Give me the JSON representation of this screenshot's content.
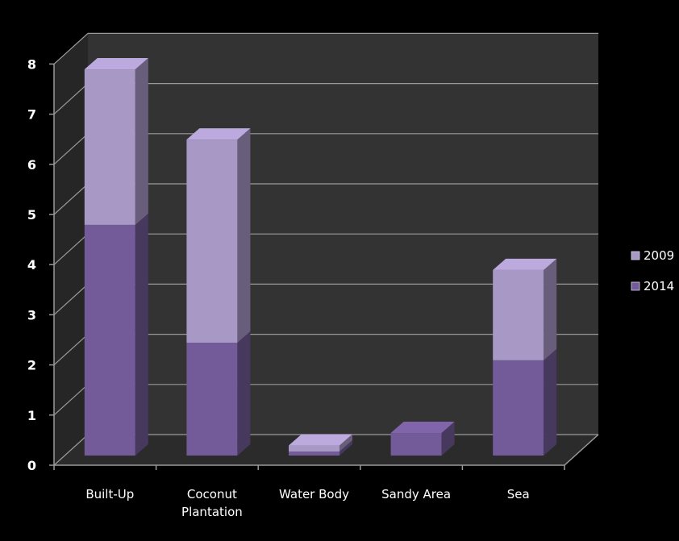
{
  "chart_data": {
    "type": "bar",
    "stacked": true,
    "three_d": true,
    "categories": [
      "Built-Up",
      "Coconut\nPlantation",
      "Water Body",
      "Sandy Area",
      "Sea"
    ],
    "series": [
      {
        "name": "2014",
        "values": [
          4.6,
          2.25,
          0.08,
          0.45,
          1.9
        ],
        "color": "#735a98"
      },
      {
        "name": "2009",
        "values": [
          3.1,
          4.05,
          0.12,
          0.0,
          1.8
        ],
        "color": "#a898c6"
      }
    ],
    "yticks": [
      0,
      1,
      2,
      3,
      4,
      5,
      6,
      7,
      8
    ],
    "ylim": [
      0,
      8
    ],
    "grid": true,
    "legend": "right",
    "legend_order": [
      "2009",
      "2014"
    ],
    "background": "#000000",
    "wall_color": "#333333",
    "floor_color": "#2b2b2b",
    "gridline_color": "#9a9a9a"
  }
}
